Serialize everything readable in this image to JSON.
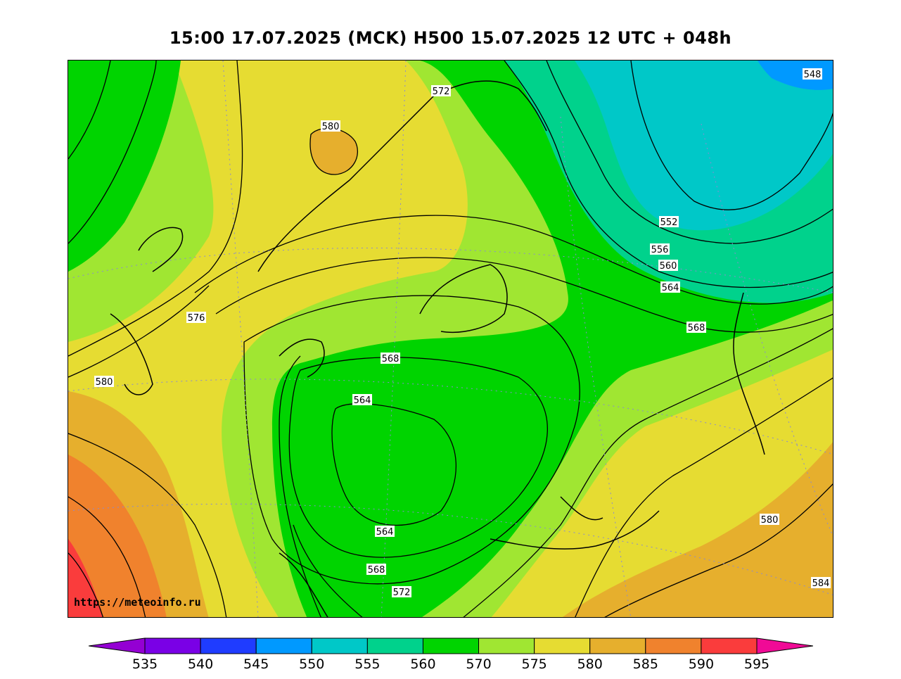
{
  "title": "15:00 17.07.2025 (MCK) H500  15.07.2025 12 UTC + 048h",
  "credit": "https://meteoinfo.ru",
  "contour_labels": [
    "548",
    "552",
    "556",
    "560",
    "564",
    "568",
    "572",
    "576",
    "580",
    "584"
  ],
  "colorbar": {
    "ticks": [
      "535",
      "540",
      "545",
      "550",
      "555",
      "560",
      "570",
      "575",
      "580",
      "585",
      "590",
      "595"
    ],
    "colors": [
      "#9400d3",
      "#7a00e6",
      "#1f3cff",
      "#0099ff",
      "#00c8c8",
      "#00d28c",
      "#00d400",
      "#a0e632",
      "#e6dc32",
      "#e6af2d",
      "#f0822d",
      "#fa3c3c",
      "#f00a96"
    ]
  }
}
